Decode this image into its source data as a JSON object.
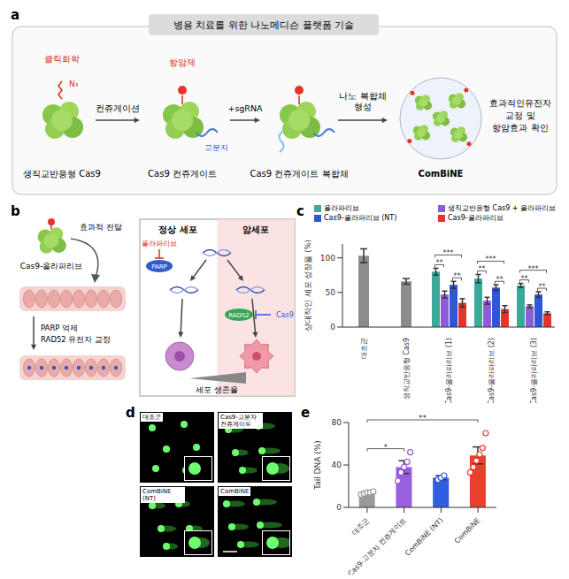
{
  "panels": {
    "a": {
      "label": "a",
      "header": "병용 치료를 위한 나노메디슨 플랫폼 기술",
      "click": "클릭화학",
      "azide": "N₃",
      "drug": "항암제",
      "polymer": "고분자",
      "steps": [
        "생직교반응형 Cas9",
        "Cas9 컨쥬게이트",
        "Cas9 컨쥬게이트 복합체",
        "ComBiNE"
      ],
      "arrows": [
        [
          "컨쥬게이션"
        ],
        [
          "+sgRNA"
        ],
        [
          "나노 복합체",
          "형성"
        ]
      ],
      "result": [
        "효과적인유전자",
        "교정 및",
        "항암효과 확인"
      ]
    },
    "b": {
      "label": "b",
      "conjugate": "Cas9-올라파리브",
      "delivery": "효과적 전달",
      "steps": [
        "PARP 억제",
        "RAD52 유전자 교정"
      ],
      "normal": "정상 세포",
      "cancer": "암세포",
      "olaparib": "올라파리브",
      "parp": "PARP",
      "rad52": "RAD52",
      "cas9": "Cas9",
      "viability": "세포 생존율"
    },
    "d": {
      "label": "d",
      "images": [
        "대조군",
        "Cas9-고분자 컨쥬게이트",
        "ComBiNE (NT)",
        "ComBiNE"
      ]
    }
  },
  "chart_data": [
    {
      "panel": "c",
      "type": "bar",
      "y_label": "상대적인 세포 성장율 (%)",
      "categories": [
        "대조군",
        "생직교반응형 Cas9",
        "Cas9-올라파리브 (1)",
        "Cas9-올라파리브 (2)",
        "Cas9-올라파리브 (3)"
      ],
      "control": {
        "color": "#8c8c8c",
        "values": [
          103,
          66,
          null,
          null,
          null
        ],
        "errors": [
          10,
          4,
          null,
          null,
          null
        ]
      },
      "series": [
        {
          "name": "올라파리브",
          "color": "#3aa99a",
          "values": [
            null,
            null,
            80,
            70,
            60
          ],
          "errors": [
            null,
            null,
            5,
            6,
            3
          ]
        },
        {
          "name": "생직교반응형 Cas9 + 올라파리브",
          "color": "#8e5cd9",
          "values": [
            null,
            null,
            47,
            38,
            30
          ],
          "errors": [
            null,
            null,
            5,
            5,
            2
          ]
        },
        {
          "name": "Cas9-올라파리브 (NT)",
          "color": "#2f56d6",
          "values": [
            null,
            null,
            61,
            57,
            47
          ],
          "errors": [
            null,
            null,
            5,
            4,
            4
          ]
        },
        {
          "name": "Cas9-올라파리브",
          "color": "#e5352b",
          "values": [
            null,
            null,
            35,
            26,
            20
          ],
          "errors": [
            null,
            null,
            6,
            5,
            2
          ]
        }
      ],
      "ylim": [
        0,
        120
      ],
      "yticks": [
        0,
        50,
        100
      ],
      "significance": [
        {
          "category": 2,
          "from": 0,
          "to": 1,
          "label": "**"
        },
        {
          "category": 2,
          "from": 0,
          "to": 3,
          "label": "***"
        },
        {
          "category": 2,
          "from": 2,
          "to": 3,
          "label": "**"
        },
        {
          "category": 3,
          "from": 0,
          "to": 1,
          "label": "**"
        },
        {
          "category": 3,
          "from": 0,
          "to": 3,
          "label": "***"
        },
        {
          "category": 3,
          "from": 2,
          "to": 3,
          "label": "**"
        },
        {
          "category": 4,
          "from": 0,
          "to": 1,
          "label": "**"
        },
        {
          "category": 4,
          "from": 0,
          "to": 3,
          "label": "***"
        },
        {
          "category": 4,
          "from": 2,
          "to": 3,
          "label": "**"
        }
      ]
    },
    {
      "panel": "e",
      "type": "bar",
      "y_label": "Tail DNA (%)",
      "categories": [
        "대조군",
        "Cas9-고분자 컨쥬게이트",
        "ComBiNE (NT)",
        "ComBiNE"
      ],
      "values": [
        14,
        38,
        28,
        49
      ],
      "errors": [
        1,
        6,
        2,
        8
      ],
      "colors": [
        "#9a9a9a",
        "#9a5fdc",
        "#2f5ee0",
        "#e8412d"
      ],
      "points": [
        [
          12,
          13,
          14,
          14,
          15
        ],
        [
          25,
          33,
          38,
          43,
          52
        ],
        [
          26,
          28,
          30
        ],
        [
          33,
          38,
          44,
          50,
          56,
          70
        ]
      ],
      "ylim": [
        0,
        80
      ],
      "yticks": [
        0,
        40,
        80
      ],
      "significance": [
        {
          "from": 0,
          "to": 1,
          "label": "*"
        },
        {
          "from": 0,
          "to": 3,
          "label": "**"
        }
      ]
    }
  ]
}
